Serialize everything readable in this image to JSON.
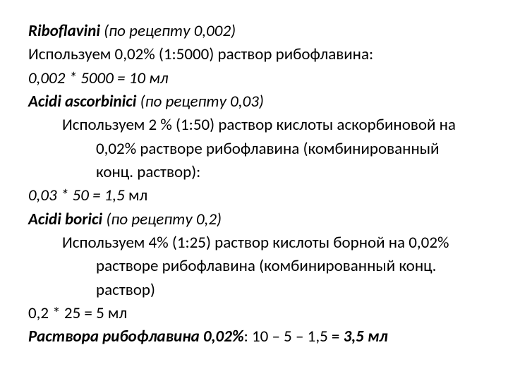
{
  "l1_a": "Riboflavini",
  "l1_b": "  (по рецепту 0,002)",
  "l2": "Используем 0,02% (1:5000) раствор рибофлавина:",
  "l3": "0,002 * 5000 = 10 мл",
  "l4_a": "Acidi ascorbinici",
  "l4_b": "  (по рецепту 0,03)",
  "l5": "Используем 2 % (1:50) раствор кислоты аскорбиновой на 0,02% растворе рибофлавина (комбинированный конц. раствор):",
  "l6_a": "0,03 * 50 = 1,5 ",
  "l6_b": "мл",
  "l7_a": "Acidi borici",
  "l7_b": "  (по рецепту 0,2)",
  "l8": "Используем  4% (1:25) раствор кислоты борной на 0,02% растворе рибофлавина (комбинированный конц. раствор)",
  "l9": "0,2 * 25 = 5 мл",
  "l10_a": "Раствора рибофлавина 0,02%",
  "l10_b": ": 10 – 5 – 1,5 = ",
  "l10_c": "3,5 мл"
}
